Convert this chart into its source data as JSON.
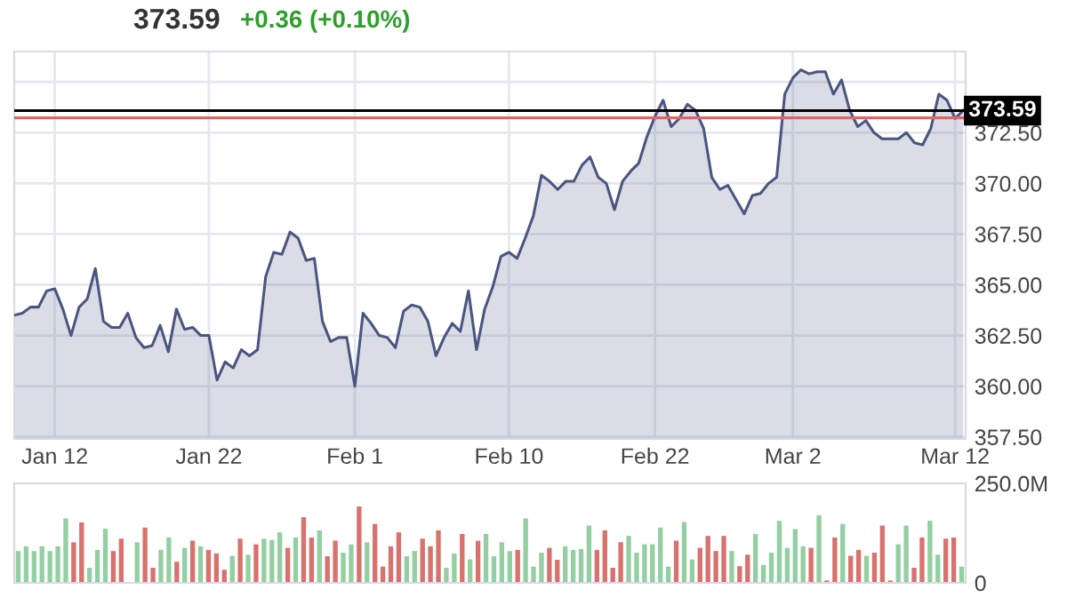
{
  "chart_data": [
    {
      "type": "area",
      "title": "373.59",
      "subtitle": "+0.36 (+0.10%)",
      "color": "#4a5680",
      "categories": [
        null,
        null,
        null,
        null,
        null,
        "Jan 12",
        null,
        null,
        null,
        null,
        null,
        null,
        null,
        null,
        null,
        null,
        null,
        null,
        null,
        null,
        null,
        null,
        null,
        null,
        "Jan 22",
        null,
        null,
        null,
        null,
        null,
        null,
        null,
        null,
        null,
        null,
        null,
        null,
        null,
        null,
        null,
        null,
        null,
        "Feb 1",
        null,
        null,
        null,
        null,
        null,
        null,
        null,
        null,
        null,
        null,
        null,
        null,
        null,
        null,
        null,
        null,
        null,
        null,
        "Feb 10",
        null,
        null,
        null,
        null,
        null,
        null,
        null,
        null,
        null,
        null,
        null,
        null,
        null,
        null,
        null,
        null,
        null,
        "Feb 22",
        null,
        null,
        null,
        null,
        null,
        null,
        null,
        null,
        null,
        null,
        null,
        null,
        null,
        null,
        null,
        null,
        "Mar 2",
        null,
        null,
        null,
        null,
        null,
        null,
        null,
        null,
        null,
        null,
        null,
        null,
        null,
        null,
        null,
        null,
        null,
        null,
        null,
        "Mar 12",
        null
      ],
      "values": [
        363.5,
        363.6,
        363.9,
        363.9,
        364.7,
        364.8,
        363.8,
        362.5,
        363.9,
        364.3,
        365.8,
        363.2,
        362.9,
        362.9,
        363.6,
        362.4,
        361.9,
        362.0,
        363.0,
        361.7,
        363.8,
        362.8,
        362.9,
        362.5,
        362.5,
        360.3,
        361.2,
        360.9,
        361.8,
        361.5,
        361.8,
        365.4,
        366.6,
        366.5,
        367.6,
        367.3,
        366.2,
        366.3,
        363.2,
        362.2,
        362.4,
        362.4,
        360.0,
        363.6,
        363.1,
        362.5,
        362.4,
        361.9,
        363.7,
        364.0,
        363.9,
        363.2,
        361.5,
        362.4,
        363.1,
        362.7,
        364.7,
        361.8,
        363.8,
        364.9,
        366.4,
        366.6,
        366.3,
        367.3,
        368.4,
        370.4,
        370.1,
        369.7,
        370.1,
        370.1,
        370.9,
        371.3,
        370.3,
        370.0,
        368.7,
        370.1,
        370.6,
        371.0,
        372.3,
        373.3,
        374.1,
        372.8,
        373.2,
        373.9,
        373.6,
        372.7,
        370.3,
        369.7,
        369.9,
        369.2,
        368.5,
        369.4,
        369.5,
        370.0,
        370.3,
        374.4,
        375.2,
        375.6,
        375.4,
        375.5,
        375.5,
        374.4,
        375.1,
        373.6,
        372.8,
        373.1,
        372.5,
        372.2,
        372.2,
        372.2,
        372.5,
        372.0,
        371.9,
        372.7,
        374.4,
        374.1,
        373.2,
        373.6
      ],
      "ylim": [
        357.4,
        376.5
      ],
      "yticks": [
        {
          "value": 357.5,
          "label": "357.50"
        },
        {
          "value": 360,
          "label": "360.00"
        },
        {
          "value": 362.5,
          "label": "362.50"
        },
        {
          "value": 365,
          "label": "365.00"
        },
        {
          "value": 367.5,
          "label": "367.50"
        },
        {
          "value": 370,
          "label": "370.00"
        },
        {
          "value": 372.5,
          "label": "372.50"
        },
        {
          "value": 375,
          "label": null
        }
      ],
      "ref_lines": [
        {
          "axis": "y",
          "value": 373.59,
          "label": "373.59",
          "color": "#000000"
        },
        {
          "axis": "y",
          "value": 373.23,
          "color": "#e06666"
        }
      ],
      "grid": true
    },
    {
      "type": "bar",
      "tick_labels": "y",
      "categories": [
        null,
        null,
        null,
        null,
        null,
        null,
        null,
        null,
        null,
        null,
        null,
        null,
        null,
        null,
        null,
        null,
        null,
        null,
        null,
        null,
        null,
        null,
        null,
        null,
        null,
        null,
        null,
        null,
        null,
        null,
        null,
        null,
        null,
        null,
        null,
        null,
        null,
        null,
        null,
        null,
        null,
        null,
        null,
        null,
        null,
        null,
        null,
        null,
        null,
        null,
        null,
        null,
        null,
        null,
        null,
        null,
        null,
        null,
        null,
        null,
        null,
        null,
        null,
        null,
        null,
        null,
        null,
        null,
        null,
        null,
        null,
        null,
        null,
        null,
        null,
        null,
        null,
        null,
        null,
        null,
        null,
        null,
        null,
        null,
        null,
        null,
        null,
        null,
        null,
        null,
        null,
        null,
        null,
        null,
        null,
        null,
        null,
        null,
        null,
        null,
        null,
        null,
        null,
        null,
        null,
        null,
        null,
        null,
        null,
        null,
        null,
        null,
        null,
        null,
        null,
        null,
        null,
        null,
        null,
        null
      ],
      "values": [
        80,
        92,
        80,
        92,
        80,
        92,
        162,
        102,
        152,
        38,
        83,
        136,
        80,
        111,
        null,
        102,
        139,
        38,
        83,
        114,
        53,
        88,
        106,
        92,
        83,
        74,
        33,
        68,
        111,
        71,
        97,
        111,
        108,
        127,
        88,
        114,
        165,
        114,
        132,
        67,
        106,
        76,
        97,
        192,
        102,
        148,
        41,
        92,
        127,
        67,
        80,
        111,
        92,
        132,
        38,
        74,
        123,
        59,
        106,
        123,
        67,
        102,
        80,
        83,
        162,
        41,
        76,
        88,
        58,
        92,
        83,
        85,
        144,
        83,
        132,
        38,
        102,
        118,
        76,
        97,
        97,
        139,
        41,
        106,
        153,
        59,
        88,
        118,
        80,
        118,
        80,
        42,
        71,
        123,
        45,
        76,
        156,
        88,
        135,
        92,
        88,
        170,
        6,
        114,
        148,
        68,
        83,
        68,
        76,
        144,
        6,
        97,
        144,
        38,
        114,
        156,
        71,
        111,
        114,
        41
      ],
      "colors": [
        "#93cfa2",
        "#93cfa2",
        "#93cfa2",
        "#93cfa2",
        "#93cfa2",
        "#93cfa2",
        "#93cfa2",
        "#d9726d",
        "#d9726d",
        "#93cfa2",
        "#93cfa2",
        "#93cfa2",
        "#d9726d",
        "#d9726d",
        "#93cfa2",
        "#93cfa2",
        "#d9726d",
        "#d9726d",
        "#93cfa2",
        "#93cfa2",
        "#d9726d",
        "#93cfa2",
        "#d9726d",
        "#93cfa2",
        "#d9726d",
        "#d9726d",
        "#d9726d",
        "#93cfa2",
        "#d9726d",
        "#93cfa2",
        "#d9726d",
        "#93cfa2",
        "#93cfa2",
        "#93cfa2",
        "#d9726d",
        "#93cfa2",
        "#d9726d",
        "#d9726d",
        "#93cfa2",
        "#d9726d",
        "#d9726d",
        "#93cfa2",
        "#93cfa2",
        "#d9726d",
        "#93cfa2",
        "#d9726d",
        "#d9726d",
        "#d9726d",
        "#d9726d",
        "#93cfa2",
        "#93cfa2",
        "#d9726d",
        "#d9726d",
        "#d9726d",
        "#93cfa2",
        "#93cfa2",
        "#d9726d",
        "#93cfa2",
        "#d9726d",
        "#93cfa2",
        "#93cfa2",
        "#93cfa2",
        "#93cfa2",
        "#d9726d",
        "#93cfa2",
        "#93cfa2",
        "#93cfa2",
        "#d9726d",
        "#d9726d",
        "#93cfa2",
        "#93cfa2",
        "#93cfa2",
        "#93cfa2",
        "#d9726d",
        "#d9726d",
        "#d9726d",
        "#d9726d",
        "#93cfa2",
        "#93cfa2",
        "#93cfa2",
        "#93cfa2",
        "#93cfa2",
        "#93cfa2",
        "#d9726d",
        "#93cfa2",
        "#93cfa2",
        "#d9726d",
        "#d9726d",
        "#d9726d",
        "#d9726d",
        "#93cfa2",
        "#d9726d",
        "#d9726d",
        "#93cfa2",
        "#93cfa2",
        "#93cfa2",
        "#93cfa2",
        "#93cfa2",
        "#93cfa2",
        "#93cfa2",
        "#d9726d",
        "#93cfa2",
        "#d9726d",
        "#d9726d",
        "#93cfa2",
        "#d9726d",
        "#d9726d",
        "#93cfa2",
        "#d9726d",
        "#d9726d",
        "#d9726d",
        "#93cfa2",
        "#93cfa2",
        "#d9726d",
        "#d9726d",
        "#93cfa2",
        "#93cfa2",
        "#d9726d",
        "#d9726d",
        "#93cfa2"
      ],
      "ylim": [
        0,
        250
      ],
      "yticks": [
        {
          "value": 250,
          "label": "250.0M"
        },
        0
      ]
    }
  ]
}
